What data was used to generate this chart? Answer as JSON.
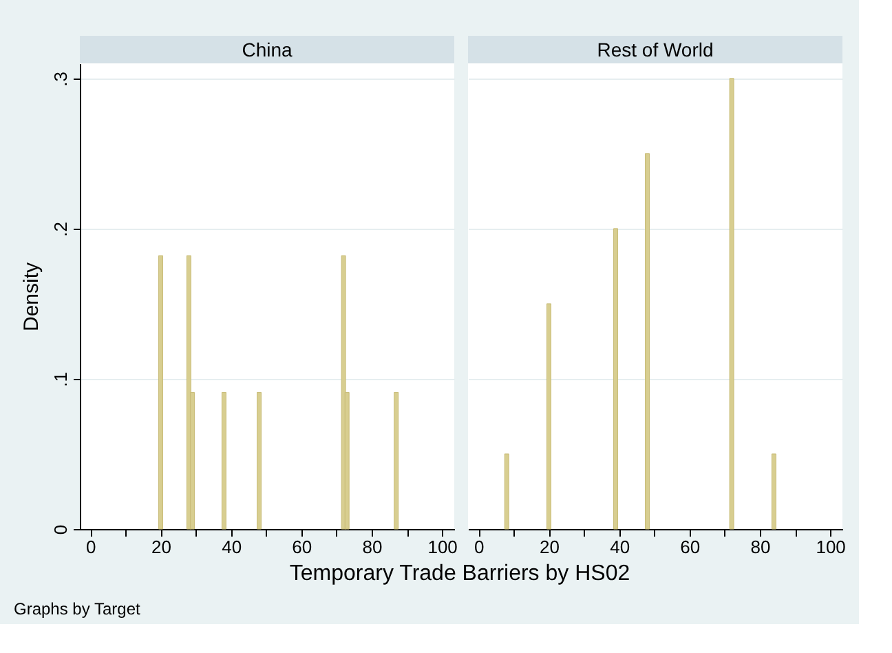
{
  "chart_data": [
    {
      "type": "bar",
      "title": "China",
      "ylabel": "Density",
      "xlabel": "Temporary Trade Barriers by HS02",
      "annotations": [
        "Graphs by Target"
      ],
      "x": [
        20,
        28,
        29,
        38,
        48,
        72,
        73,
        87
      ],
      "values": [
        0.182,
        0.182,
        0.091,
        0.091,
        0.091,
        0.182,
        0.091,
        0.091
      ],
      "color": "#d8ce90",
      "xlim": [
        -3,
        103.5
      ],
      "xticks": [
        0,
        {
          "value": 10,
          "label": null
        },
        20,
        {
          "value": 30,
          "label": null
        },
        40,
        {
          "value": 50,
          "label": null
        },
        60,
        {
          "value": 70,
          "label": null
        },
        80,
        {
          "value": 90,
          "label": null
        },
        100
      ],
      "ylim": [
        0,
        0.31
      ],
      "yticks": [
        0,
        {
          "value": 0.1,
          "label": ".1"
        },
        {
          "value": 0.2,
          "label": ".2"
        },
        {
          "value": 0.3,
          "label": ".3"
        }
      ],
      "grid": "y"
    },
    {
      "type": "bar",
      "title": "Rest of World",
      "tick_labels": "x",
      "x": [
        8,
        20,
        39,
        48,
        72,
        84
      ],
      "values": [
        0.05,
        0.15,
        0.2,
        0.25,
        0.3,
        0.05
      ],
      "color": "#d8ce90",
      "xlim": [
        -3,
        103.5
      ],
      "xticks": [
        0,
        {
          "value": 10,
          "label": null
        },
        20,
        {
          "value": 30,
          "label": null
        },
        40,
        {
          "value": 50,
          "label": null
        },
        60,
        {
          "value": 70,
          "label": null
        },
        80,
        {
          "value": 90,
          "label": null
        },
        100
      ],
      "ylim": [
        0,
        0.31
      ],
      "yticks": [
        0,
        0.1,
        0.2,
        0.3
      ],
      "grid": "y"
    }
  ]
}
